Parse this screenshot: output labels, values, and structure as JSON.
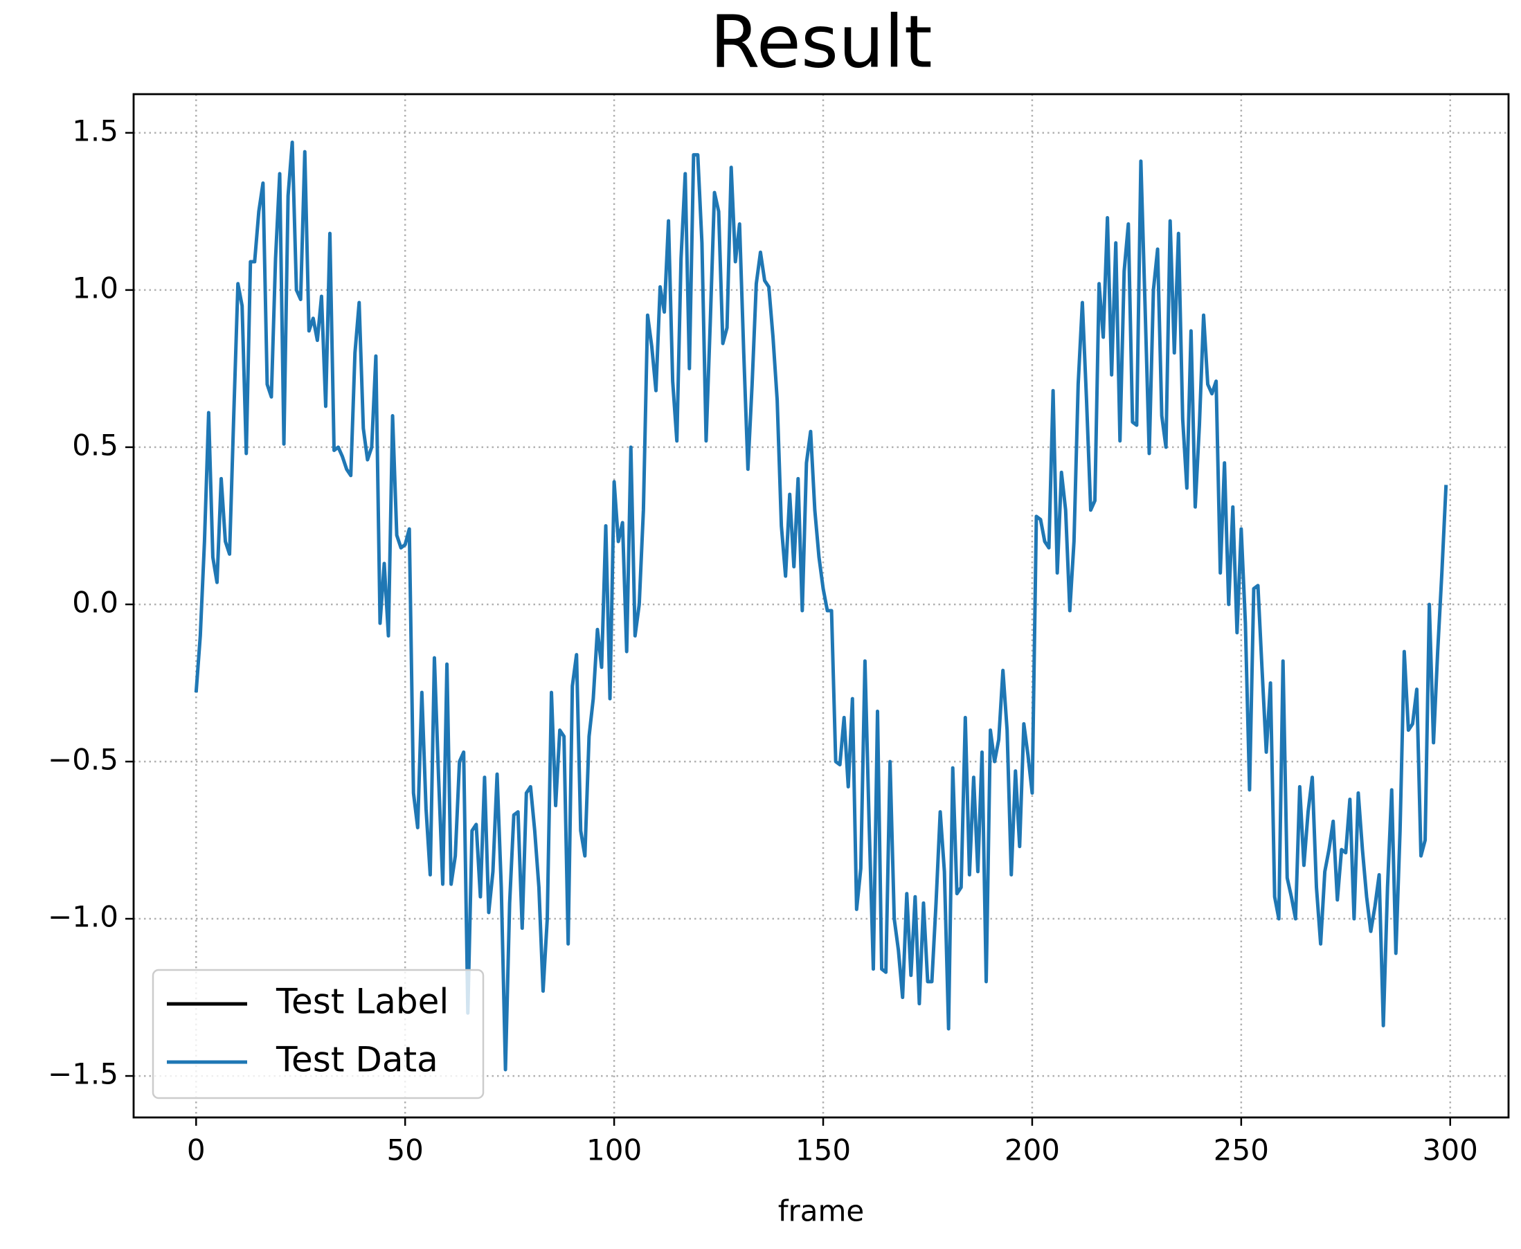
{
  "chart_data": {
    "type": "line",
    "title": "Result",
    "x_label": "frame",
    "xlim": [
      -14.95,
      313.95
    ],
    "ylim": [
      -1.632,
      1.623
    ],
    "xticks": [
      0,
      50,
      100,
      150,
      200,
      250,
      300
    ],
    "yticks": [
      {
        "value": -1.5,
        "label": "−1.5"
      },
      {
        "value": -1.0,
        "label": "−1.0"
      },
      {
        "value": -0.5,
        "label": "−0.5"
      },
      {
        "value": 0,
        "label": "0.0"
      },
      0.5,
      {
        "value": 1.0,
        "label": "1.0"
      },
      1.5
    ],
    "grid": true,
    "legend": "lower left",
    "series": [
      {
        "name": "Test Label",
        "color": "#000000",
        "x": [],
        "values": []
      },
      {
        "name": "Test Data",
        "color": "#1f77b4",
        "x": [
          0,
          1,
          2,
          3,
          4,
          5,
          6,
          7,
          8,
          9,
          10,
          11,
          12,
          13,
          14,
          15,
          16,
          17,
          18,
          19,
          20,
          21,
          22,
          23,
          24,
          25,
          26,
          27,
          28,
          29,
          30,
          31,
          32,
          33,
          34,
          35,
          36,
          37,
          38,
          39,
          40,
          41,
          42,
          43,
          44,
          45,
          46,
          47,
          48,
          49,
          50,
          51,
          52,
          53,
          54,
          55,
          56,
          57,
          58,
          59,
          60,
          61,
          62,
          63,
          64,
          65,
          66,
          67,
          68,
          69,
          70,
          71,
          72,
          73,
          74,
          75,
          76,
          77,
          78,
          79,
          80,
          81,
          82,
          83,
          84,
          85,
          86,
          87,
          88,
          89,
          90,
          91,
          92,
          93,
          94,
          95,
          96,
          97,
          98,
          99,
          100,
          101,
          102,
          103,
          104,
          105,
          106,
          107,
          108,
          109,
          110,
          111,
          112,
          113,
          114,
          115,
          116,
          117,
          118,
          119,
          120,
          121,
          122,
          123,
          124,
          125,
          126,
          127,
          128,
          129,
          130,
          131,
          132,
          133,
          134,
          135,
          136,
          137,
          138,
          139,
          140,
          141,
          142,
          143,
          144,
          145,
          146,
          147,
          148,
          149,
          150,
          151,
          152,
          153,
          154,
          155,
          156,
          157,
          158,
          159,
          160,
          161,
          162,
          163,
          164,
          165,
          166,
          167,
          168,
          169,
          170,
          171,
          172,
          173,
          174,
          175,
          176,
          177,
          178,
          179,
          180,
          181,
          182,
          183,
          184,
          185,
          186,
          187,
          188,
          189,
          190,
          191,
          192,
          193,
          194,
          195,
          196,
          197,
          198,
          199,
          200,
          201,
          202,
          203,
          204,
          205,
          206,
          207,
          208,
          209,
          210,
          211,
          212,
          213,
          214,
          215,
          216,
          217,
          218,
          219,
          220,
          221,
          222,
          223,
          224,
          225,
          226,
          227,
          228,
          229,
          230,
          231,
          232,
          233,
          234,
          235,
          236,
          237,
          238,
          239,
          240,
          241,
          242,
          243,
          244,
          245,
          246,
          247,
          248,
          249,
          250,
          251,
          252,
          253,
          254,
          255,
          256,
          257,
          258,
          259,
          260,
          261,
          262,
          263,
          264,
          265,
          266,
          267,
          268,
          269,
          270,
          271,
          272,
          273,
          274,
          275,
          276,
          277,
          278,
          279,
          280,
          281,
          282,
          283,
          284,
          285,
          286,
          287,
          288,
          289,
          290,
          291,
          292,
          293,
          294,
          295,
          296,
          297,
          298,
          299
        ],
        "values": [
          -0.28,
          -0.1,
          0.2,
          0.61,
          0.15,
          0.07,
          0.4,
          0.2,
          0.16,
          0.6,
          1.02,
          0.95,
          0.48,
          1.09,
          1.09,
          1.25,
          1.34,
          0.7,
          0.66,
          1.1,
          1.37,
          0.51,
          1.3,
          1.47,
          1.0,
          0.97,
          1.44,
          0.87,
          0.91,
          0.84,
          0.98,
          0.63,
          1.18,
          0.49,
          0.5,
          0.47,
          0.43,
          0.41,
          0.8,
          0.96,
          0.56,
          0.46,
          0.5,
          0.79,
          -0.06,
          0.13,
          -0.1,
          0.6,
          0.22,
          0.18,
          0.19,
          0.24,
          -0.6,
          -0.71,
          -0.28,
          -0.65,
          -0.86,
          -0.17,
          -0.55,
          -0.89,
          -0.19,
          -0.89,
          -0.8,
          -0.5,
          -0.47,
          -1.3,
          -0.72,
          -0.7,
          -0.93,
          -0.55,
          -0.98,
          -0.85,
          -0.54,
          -0.9,
          -1.48,
          -0.95,
          -0.67,
          -0.66,
          -1.03,
          -0.6,
          -0.58,
          -0.72,
          -0.9,
          -1.23,
          -1.0,
          -0.28,
          -0.64,
          -0.4,
          -0.42,
          -1.08,
          -0.26,
          -0.16,
          -0.72,
          -0.8,
          -0.42,
          -0.3,
          -0.08,
          -0.2,
          0.25,
          -0.3,
          0.39,
          0.2,
          0.26,
          -0.15,
          0.5,
          -0.1,
          0.0,
          0.3,
          0.92,
          0.82,
          0.68,
          1.01,
          0.93,
          1.22,
          0.71,
          0.52,
          1.1,
          1.37,
          0.75,
          1.43,
          1.43,
          1.15,
          0.52,
          0.9,
          1.31,
          1.25,
          0.83,
          0.88,
          1.39,
          1.09,
          1.21,
          0.8,
          0.43,
          0.7,
          1.02,
          1.12,
          1.03,
          1.01,
          0.85,
          0.65,
          0.25,
          0.09,
          0.35,
          0.12,
          0.4,
          -0.02,
          0.45,
          0.55,
          0.3,
          0.15,
          0.05,
          -0.02,
          -0.02,
          -0.5,
          -0.51,
          -0.36,
          -0.58,
          -0.3,
          -0.97,
          -0.84,
          -0.18,
          -0.7,
          -1.16,
          -0.34,
          -1.16,
          -1.17,
          -0.5,
          -1.0,
          -1.1,
          -1.25,
          -0.92,
          -1.18,
          -0.93,
          -1.27,
          -0.95,
          -1.2,
          -1.2,
          -0.95,
          -0.66,
          -0.85,
          -1.35,
          -0.52,
          -0.92,
          -0.9,
          -0.36,
          -0.86,
          -0.55,
          -0.85,
          -0.47,
          -1.2,
          -0.4,
          -0.5,
          -0.43,
          -0.21,
          -0.4,
          -0.86,
          -0.53,
          -0.77,
          -0.38,
          -0.48,
          -0.6,
          0.28,
          0.27,
          0.2,
          0.18,
          0.68,
          0.1,
          0.42,
          0.3,
          -0.02,
          0.2,
          0.7,
          0.96,
          0.65,
          0.3,
          0.33,
          1.02,
          0.85,
          1.23,
          0.73,
          1.15,
          0.52,
          1.06,
          1.21,
          0.58,
          0.57,
          1.41,
          0.95,
          0.48,
          1.0,
          1.13,
          0.6,
          0.5,
          1.22,
          0.8,
          1.18,
          0.59,
          0.37,
          0.87,
          0.31,
          0.57,
          0.92,
          0.7,
          0.67,
          0.71,
          0.1,
          0.45,
          0.0,
          0.31,
          -0.09,
          0.24,
          -0.06,
          -0.59,
          0.05,
          0.06,
          -0.21,
          -0.47,
          -0.25,
          -0.93,
          -1.0,
          -0.18,
          -0.87,
          -0.93,
          -1.0,
          -0.58,
          -0.83,
          -0.66,
          -0.55,
          -0.9,
          -1.08,
          -0.85,
          -0.78,
          -0.69,
          -0.94,
          -0.78,
          -0.79,
          -0.62,
          -1.0,
          -0.6,
          -0.78,
          -0.93,
          -1.04,
          -0.96,
          -0.86,
          -1.34,
          -0.9,
          -0.59,
          -1.11,
          -0.72,
          -0.15,
          -0.4,
          -0.38,
          -0.27,
          -0.8,
          -0.75,
          0.0,
          -0.44,
          -0.15,
          0.1,
          0.38
        ]
      }
    ]
  }
}
